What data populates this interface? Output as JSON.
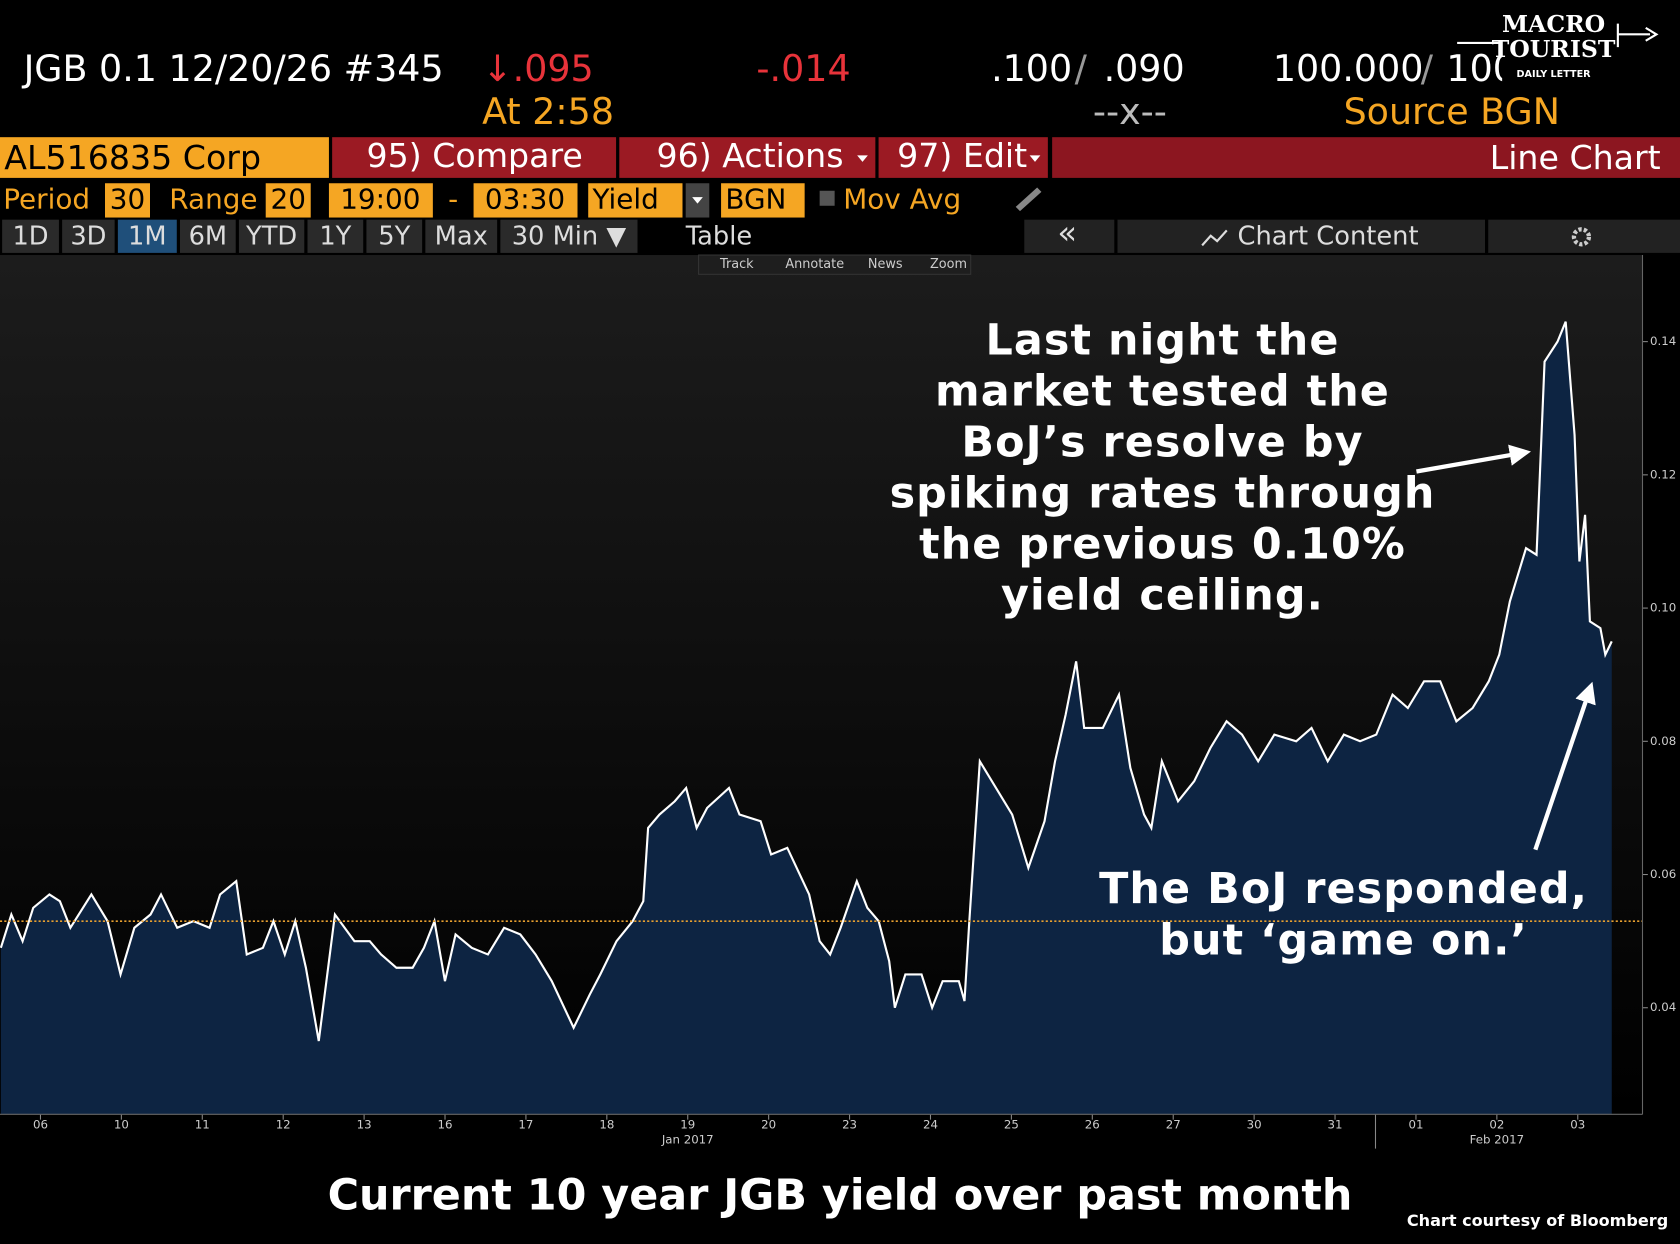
{
  "header": {
    "security": "JGB 0.1 12/20/26 #345",
    "last": "↓.095",
    "change": "-.014",
    "time": "At 2:58",
    "bid": ".100",
    "bid_sep": "/",
    "ask": ".090",
    "spread": "--x--",
    "px_bid": "100.000",
    "px_sep": "/",
    "px_ask": "100.002",
    "source": "Source BGN"
  },
  "logo": {
    "line1": "MACRO",
    "line2": "TOURIST",
    "line3": "DAILY LETTER"
  },
  "toolbar": {
    "ticker": "AL516835 Corp",
    "compare": "95) Compare",
    "actions": "96) Actions",
    "edit": "97) Edit",
    "chart_type": "Line Chart"
  },
  "settings": {
    "period_label": "Period",
    "period": "30",
    "range_label": "Range",
    "range": "20",
    "start": "19:00",
    "dash": "-",
    "end": "03:30",
    "field": "Yield",
    "source": "BGN",
    "mov_avg": "Mov Avg"
  },
  "tabs": [
    "1D",
    "3D",
    "1M",
    "6M",
    "YTD",
    "1Y",
    "5Y",
    "Max",
    "30 Min ▼"
  ],
  "panel": {
    "table": "Table",
    "collapse": "«",
    "content": "Chart Content"
  },
  "tools": [
    "Track",
    "Annotate",
    "News",
    "Zoom"
  ],
  "caption": "Current 10 year JGB yield over past month",
  "credit": "Chart courtesy of Bloomberg",
  "chart_data": {
    "type": "line",
    "annotations": [
      {
        "lines": [
          "Last night the",
          "market tested the",
          "BoJ’s resolve by",
          "spiking rates through",
          "the previous 0.10%",
          "yield ceiling."
        ]
      },
      {
        "lines": [
          "The BoJ responded,",
          "but ‘game on.’"
        ]
      }
    ],
    "x": [
      -0.49,
      -0.36,
      -0.22,
      -0.09,
      0.11,
      0.24,
      0.37,
      0.63,
      0.83,
      0.99,
      1.16,
      1.36,
      1.49,
      1.69,
      1.89,
      2.09,
      2.22,
      2.42,
      2.55,
      2.75,
      2.88,
      3.02,
      3.15,
      3.28,
      3.44,
      3.64,
      3.88,
      4.07,
      4.21,
      4.4,
      4.6,
      4.74,
      4.87,
      5.0,
      5.13,
      5.33,
      5.53,
      5.73,
      5.93,
      6.12,
      6.32,
      6.59,
      6.79,
      6.92,
      7.12,
      7.32,
      7.45,
      7.51,
      7.65,
      7.84,
      7.98,
      8.11,
      8.24,
      8.51,
      8.64,
      8.9,
      9.03,
      9.23,
      9.5,
      9.63,
      9.76,
      9.89,
      10.09,
      10.22,
      10.36,
      10.49,
      10.56,
      10.69,
      10.89,
      11.02,
      11.15,
      11.35,
      11.42,
      11.48,
      11.61,
      11.81,
      12.01,
      12.21,
      12.41,
      12.54,
      12.67,
      12.8,
      12.9,
      13.13,
      13.33,
      13.47,
      13.64,
      13.73,
      13.86,
      14.06,
      14.26,
      14.46,
      14.66,
      14.85,
      15.05,
      15.25,
      15.52,
      15.71,
      15.91,
      16.11,
      16.31,
      16.51,
      16.71,
      16.9,
      17.1,
      17.3,
      17.5,
      17.7,
      17.9,
      18.03,
      18.16,
      18.36,
      18.49,
      18.59,
      18.75,
      18.85,
      18.96,
      19.02,
      19.09,
      19.15,
      19.28,
      19.34,
      19.42
    ],
    "series": [
      {
        "name": "Yield",
        "color": "#ffffff",
        "fill": "#0d2442",
        "values": [
          0.049,
          0.054,
          0.05,
          0.055,
          0.057,
          0.056,
          0.052,
          0.057,
          0.053,
          0.045,
          0.052,
          0.054,
          0.057,
          0.052,
          0.053,
          0.052,
          0.057,
          0.059,
          0.048,
          0.049,
          0.053,
          0.048,
          0.053,
          0.046,
          0.035,
          0.054,
          0.05,
          0.05,
          0.048,
          0.046,
          0.046,
          0.049,
          0.053,
          0.044,
          0.051,
          0.049,
          0.048,
          0.052,
          0.051,
          0.048,
          0.044,
          0.037,
          0.042,
          0.045,
          0.05,
          0.053,
          0.056,
          0.067,
          0.069,
          0.071,
          0.073,
          0.067,
          0.07,
          0.073,
          0.069,
          0.068,
          0.063,
          0.064,
          0.057,
          0.05,
          0.048,
          0.052,
          0.059,
          0.055,
          0.053,
          0.047,
          0.04,
          0.045,
          0.045,
          0.04,
          0.044,
          0.044,
          0.041,
          0.053,
          0.077,
          0.073,
          0.069,
          0.061,
          0.068,
          0.077,
          0.084,
          0.092,
          0.082,
          0.082,
          0.087,
          0.076,
          0.069,
          0.067,
          0.077,
          0.071,
          0.074,
          0.079,
          0.083,
          0.081,
          0.077,
          0.081,
          0.08,
          0.082,
          0.077,
          0.081,
          0.08,
          0.081,
          0.087,
          0.085,
          0.089,
          0.089,
          0.083,
          0.085,
          0.089,
          0.093,
          0.101,
          0.109,
          0.108,
          0.137,
          0.14,
          0.143,
          0.126,
          0.107,
          0.114,
          0.098,
          0.097,
          0.093,
          0.095
        ]
      }
    ],
    "reference_line": 0.053,
    "reference_color": "#e8a030",
    "xlim": [
      -0.5,
      19.8
    ],
    "xticks": [
      {
        "value": 0,
        "label": "06"
      },
      {
        "value": 1,
        "label": "10"
      },
      {
        "value": 2,
        "label": "11"
      },
      {
        "value": 3,
        "label": "12"
      },
      {
        "value": 4,
        "label": "13"
      },
      {
        "value": 5,
        "label": "16"
      },
      {
        "value": 6,
        "label": "17"
      },
      {
        "value": 7,
        "label": "18"
      },
      {
        "value": 8,
        "label": "19"
      },
      {
        "value": 9,
        "label": "20"
      },
      {
        "value": 10,
        "label": "23"
      },
      {
        "value": 11,
        "label": "24"
      },
      {
        "value": 12,
        "label": "25"
      },
      {
        "value": 13,
        "label": "26"
      },
      {
        "value": 14,
        "label": "27"
      },
      {
        "value": 15,
        "label": "30"
      },
      {
        "value": 16,
        "label": "31"
      },
      {
        "value": 17,
        "label": "01"
      },
      {
        "value": 18,
        "label": "02"
      },
      {
        "value": 19,
        "label": "03"
      }
    ],
    "month_labels": [
      {
        "x": 8,
        "label": "Jan 2017"
      },
      {
        "x": 18,
        "label": "Feb 2017"
      }
    ],
    "ylim": [
      0.024,
      0.153
    ],
    "yticks": [
      0.04,
      0.06,
      0.08,
      {
        "value": 0.1,
        "label": "0.10"
      },
      0.12,
      0.14
    ]
  }
}
